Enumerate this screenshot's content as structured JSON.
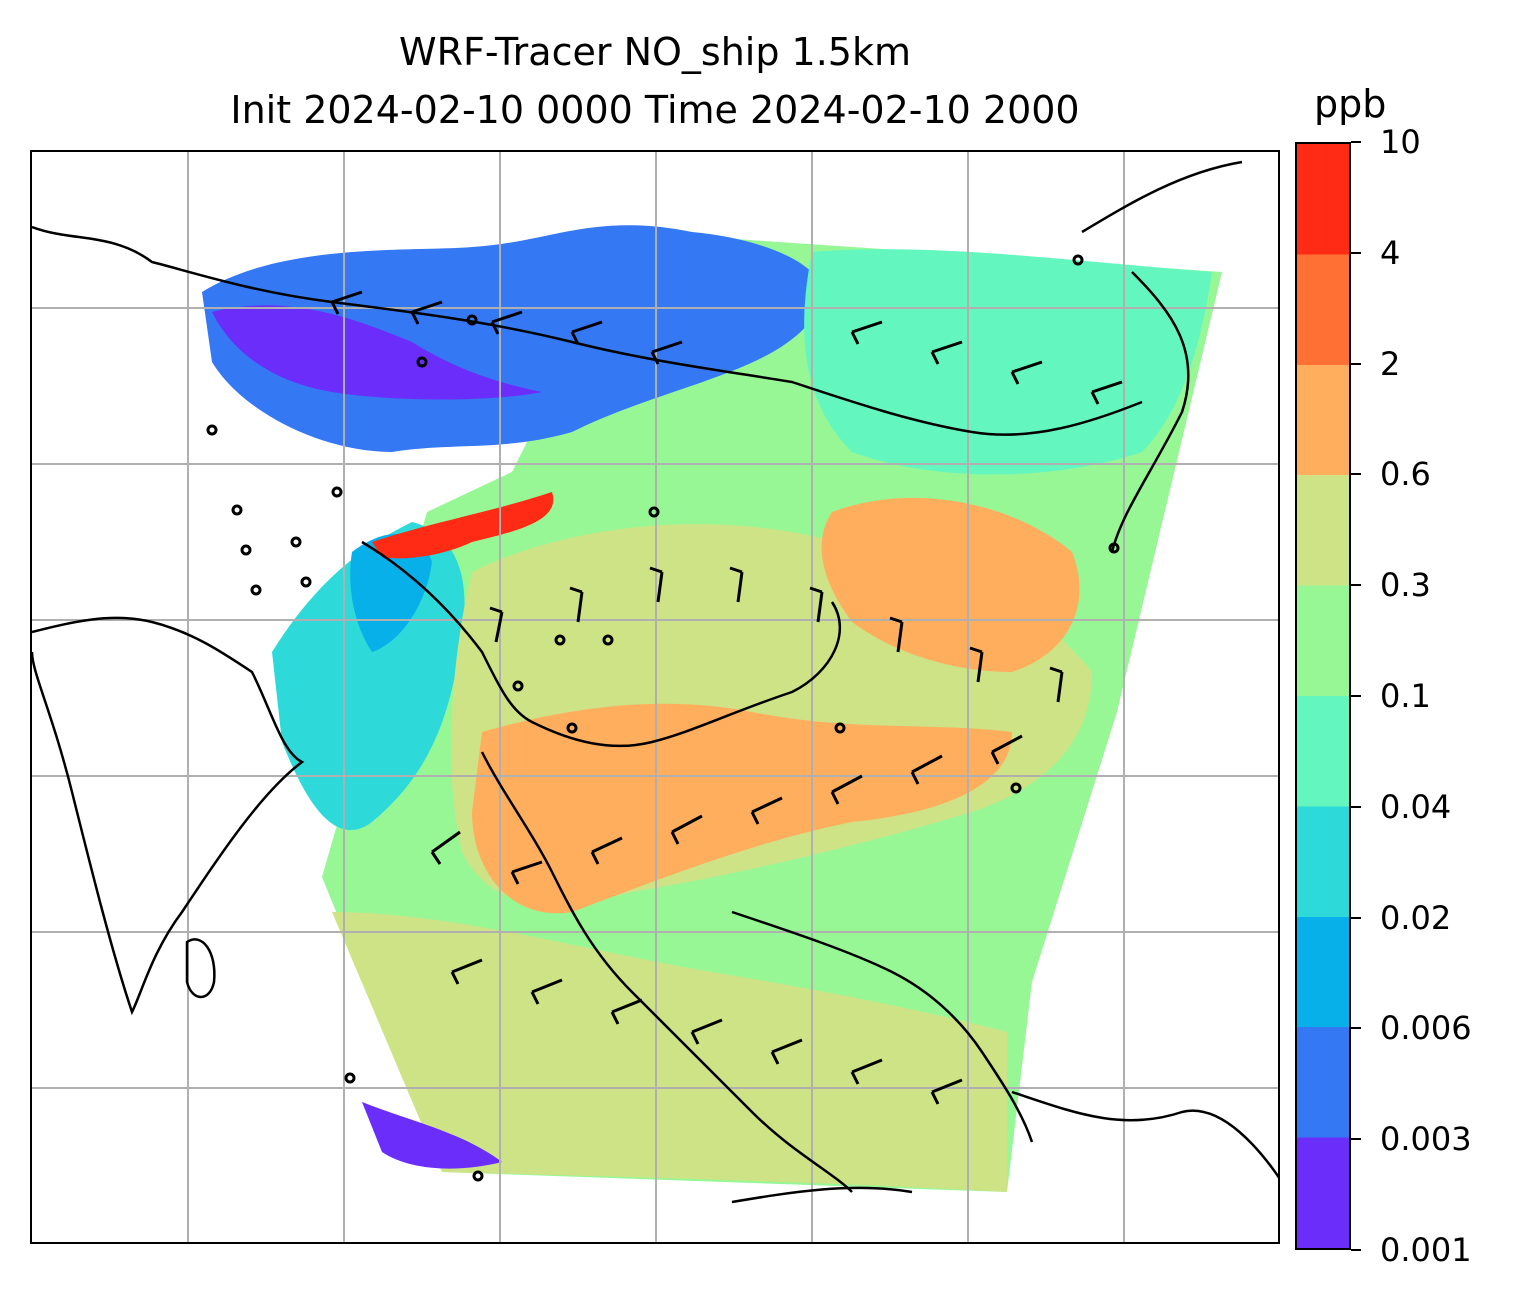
{
  "title": {
    "line1": "WRF-Tracer NO_ship 1.5km",
    "line2": "Init 2024-02-10 0000 Time 2024-02-10 2000"
  },
  "colorbar": {
    "unit": "ppb",
    "ticks": [
      "0.001",
      "0.003",
      "0.006",
      "0.02",
      "0.04",
      "0.1",
      "0.3",
      "0.6",
      "2",
      "4",
      "10"
    ],
    "colors": [
      "#6a2dfa",
      "#3578f4",
      "#08b0ea",
      "#2ed9d9",
      "#63f7bf",
      "#97f795",
      "#cde386",
      "#ffae5e",
      "#ff7035",
      "#ff2b15"
    ]
  },
  "map": {
    "gridlines": true,
    "coastline_color": "#000000",
    "grid_color": "#b0b0b0",
    "wind_barbs": true
  }
}
